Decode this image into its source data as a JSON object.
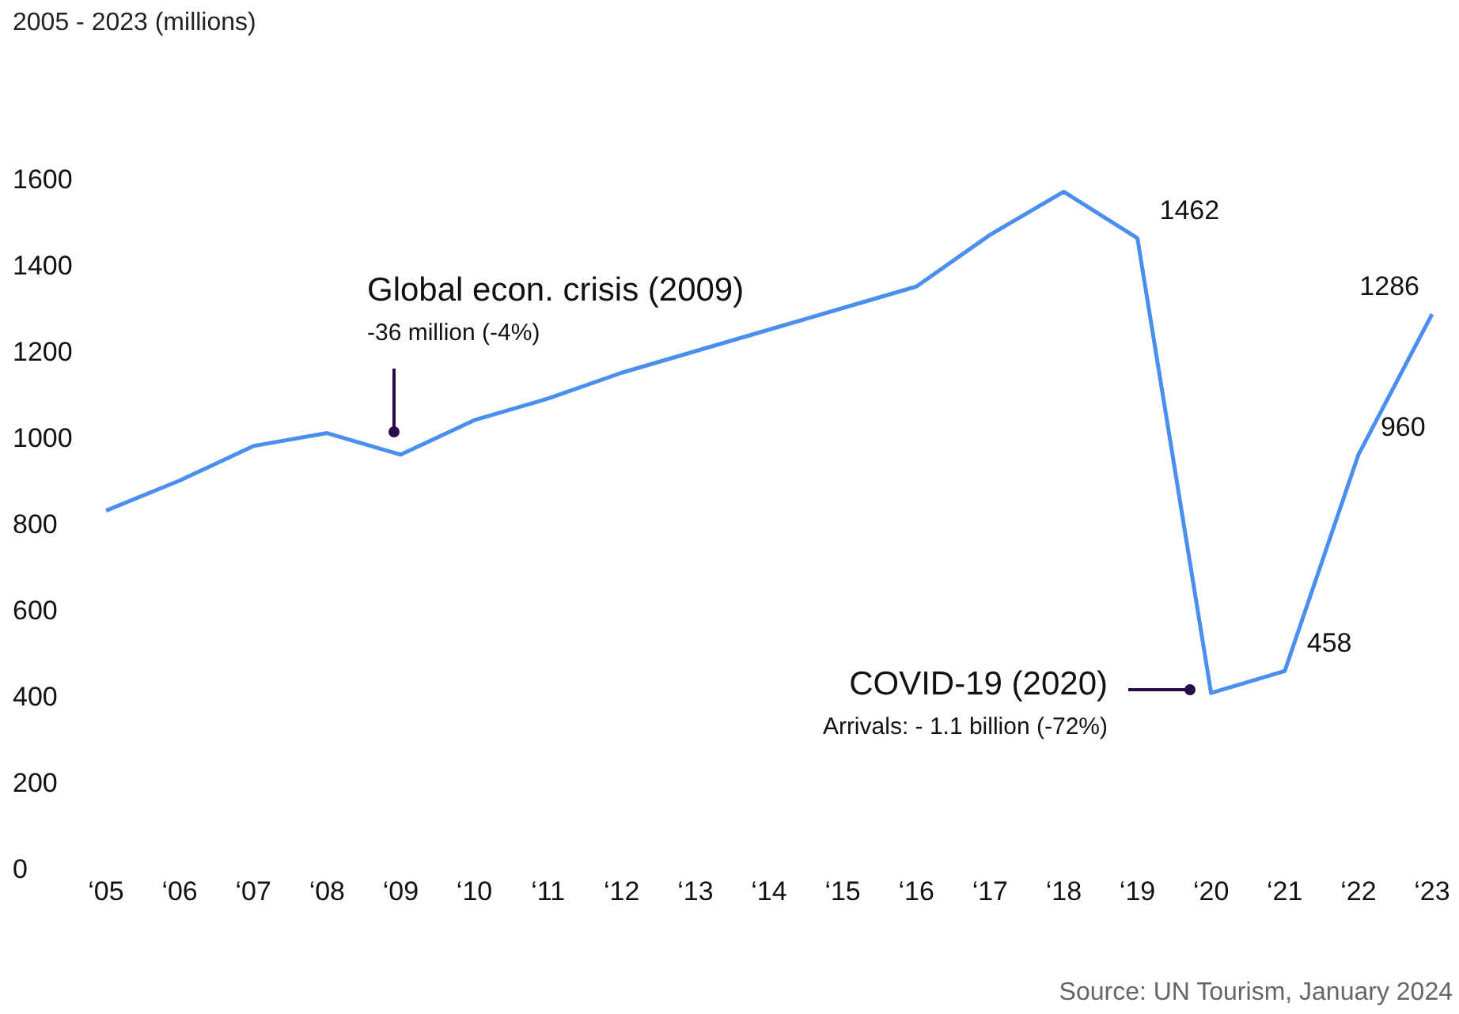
{
  "chart_data": {
    "type": "line",
    "title": "2005 - 2023 (millions)",
    "categories": [
      "‘05",
      "‘06",
      "‘07",
      "‘08",
      "‘09",
      "‘10",
      "‘11",
      "‘12",
      "‘13",
      "‘14",
      "‘15",
      "‘16",
      "‘17",
      "‘18",
      "‘19",
      "‘20",
      "‘21",
      "‘22",
      "‘23"
    ],
    "series": [
      {
        "color": "#4a8ff0",
        "values": [
          830,
          900,
          980,
          1010,
          960,
          1040,
          1090,
          1150,
          1200,
          1250,
          1300,
          1350,
          1470,
          1570,
          1462,
          407,
          458,
          960,
          1286
        ],
        "value_labels": [
          null,
          null,
          null,
          null,
          null,
          null,
          null,
          null,
          null,
          null,
          null,
          null,
          null,
          null,
          "1462",
          null,
          "458",
          "960",
          "1286"
        ]
      }
    ],
    "ylim": [
      0,
      1600
    ],
    "yticks": [
      0,
      200,
      400,
      600,
      800,
      1000,
      1200,
      1400,
      1600
    ],
    "marker": "none",
    "line_style": "solid",
    "annotations": [
      "Global econ. crisis (2009)\n-36 million (-4%)",
      "COVID-19 (2020)\nArrivals: - 1.1 billion (-72%)",
      "Source: UN Tourism, January 2024"
    ]
  }
}
